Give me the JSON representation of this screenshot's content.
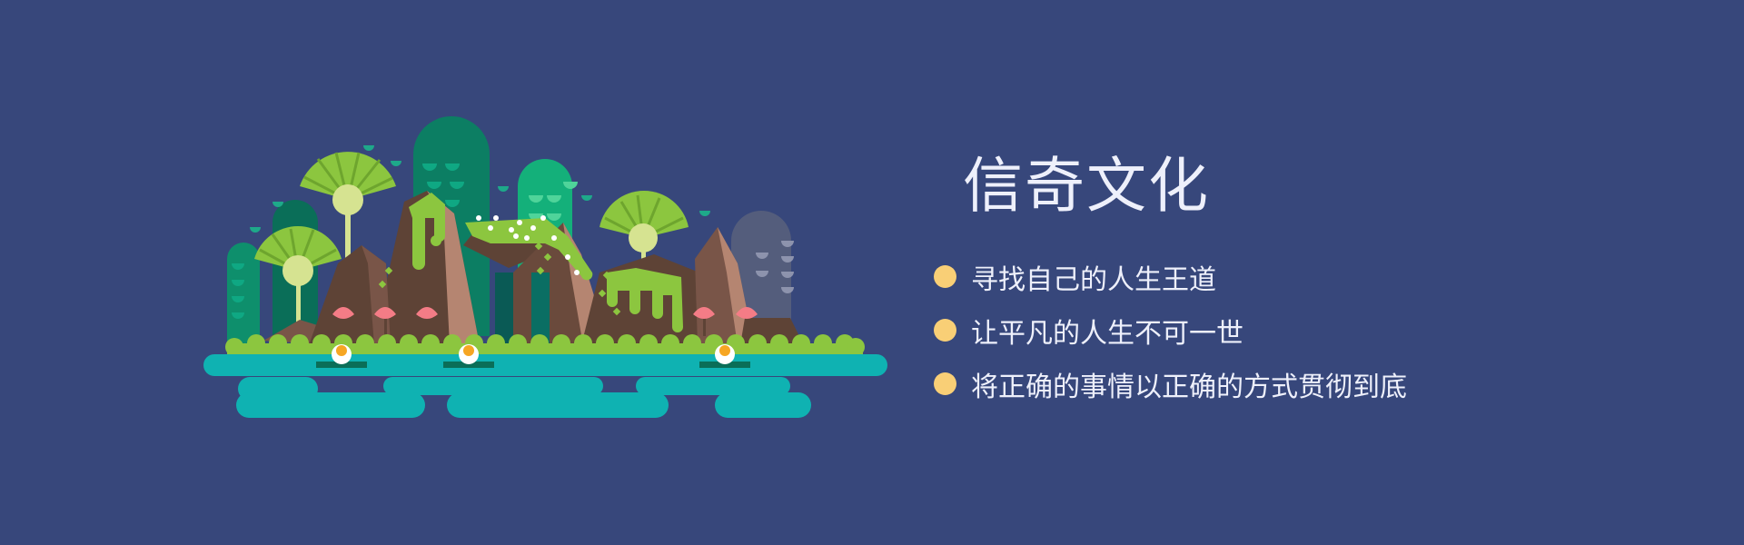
{
  "title": "信奇文化",
  "bullets": [
    "寻找自己的人生王道",
    "让平凡的人生不可一世",
    "将正确的事情以正确的方式贯彻到底"
  ],
  "colors": {
    "background": "#37477b",
    "bullet_dot": "#f9cf76",
    "water": "#0fb2b2",
    "grass": "#8cc63f",
    "rock_dark": "#5e4336",
    "rock_light": "#b58571",
    "tree_green": "#0c8f6b",
    "lotus": "#f47c86"
  }
}
